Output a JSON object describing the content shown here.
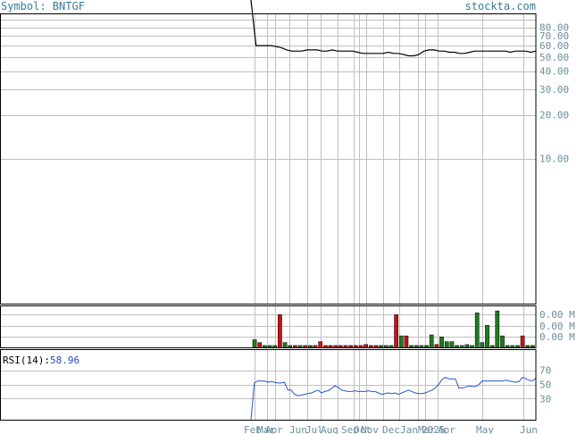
{
  "header": {
    "symbol_label": "Symbol: BNTGF",
    "brand": "stockta.com"
  },
  "colors": {
    "grid": "#c0c0c0",
    "price_line": "#000000",
    "rsi_line": "#2255cc",
    "rsi_label": "#000000",
    "rsi_value": "#1f4fb0",
    "axis_text": "#6b8e9a",
    "up_volume": "#1f7a1f",
    "down_volume": "#cc1111"
  },
  "chart_data": [
    {
      "type": "line",
      "panel": "price",
      "y_scale": "log",
      "y_tick_labels": [
        "80.00",
        "70.00",
        "60.00",
        "50.00",
        "40.00",
        "30.00",
        "20.00",
        "10.00"
      ],
      "y_ticks": [
        80,
        70,
        60,
        50,
        40,
        30,
        20,
        10
      ],
      "x_tick_labels": [
        "Feb",
        "Mar",
        "Apr",
        "Jun",
        "Jul",
        "Aug",
        "Sep",
        "Oct",
        "Nov",
        "Dec",
        "Jan",
        "Mar",
        "2025",
        "Apr",
        "May",
        "Jun"
      ],
      "series": [
        {
          "values": [
            1000,
            60,
            60,
            60,
            60,
            59,
            58,
            56,
            55,
            55,
            55,
            56,
            56,
            56,
            55,
            55,
            56,
            55,
            55,
            55,
            55,
            54,
            53,
            53,
            53,
            53,
            53,
            54,
            53,
            53,
            52,
            51,
            51,
            52,
            55,
            56,
            56,
            55,
            55,
            54,
            54,
            53,
            53,
            54,
            55,
            55,
            55,
            55,
            55,
            55,
            55,
            54,
            55,
            55,
            55,
            54,
            55
          ]
        }
      ]
    },
    {
      "type": "bar",
      "panel": "volume",
      "y_tick_labels": [
        "0.00 M",
        "0.00 M",
        "0.00 M"
      ],
      "bars": [
        {
          "v": 0.8,
          "c": "up"
        },
        {
          "v": 0.5,
          "c": "down"
        },
        {
          "v": 0.2,
          "c": "up"
        },
        {
          "v": 0.2,
          "c": "up"
        },
        {
          "v": 0.2,
          "c": "up"
        },
        {
          "v": 3.4,
          "c": "down"
        },
        {
          "v": 0.5,
          "c": "up"
        },
        {
          "v": 0.2,
          "c": "up"
        },
        {
          "v": 0.2,
          "c": "down"
        },
        {
          "v": 0.2,
          "c": "up"
        },
        {
          "v": 0.2,
          "c": "down"
        },
        {
          "v": 0.2,
          "c": "up"
        },
        {
          "v": 0.2,
          "c": "down"
        },
        {
          "v": 0.6,
          "c": "down"
        },
        {
          "v": 0.2,
          "c": "down"
        },
        {
          "v": 0.2,
          "c": "down"
        },
        {
          "v": 0.2,
          "c": "down"
        },
        {
          "v": 0.2,
          "c": "down"
        },
        {
          "v": 0.2,
          "c": "down"
        },
        {
          "v": 0.2,
          "c": "down"
        },
        {
          "v": 0.2,
          "c": "down"
        },
        {
          "v": 0.2,
          "c": "down"
        },
        {
          "v": 0.3,
          "c": "down"
        },
        {
          "v": 0.2,
          "c": "down"
        },
        {
          "v": 0.2,
          "c": "down"
        },
        {
          "v": 0.2,
          "c": "up"
        },
        {
          "v": 0.2,
          "c": "up"
        },
        {
          "v": 0.2,
          "c": "up"
        },
        {
          "v": 3.4,
          "c": "down"
        },
        {
          "v": 1.2,
          "c": "up"
        },
        {
          "v": 1.2,
          "c": "down"
        },
        {
          "v": 0.2,
          "c": "up"
        },
        {
          "v": 0.2,
          "c": "up"
        },
        {
          "v": 0.2,
          "c": "up"
        },
        {
          "v": 0.2,
          "c": "up"
        },
        {
          "v": 1.3,
          "c": "up"
        },
        {
          "v": 0.3,
          "c": "down"
        },
        {
          "v": 1.1,
          "c": "up"
        },
        {
          "v": 0.6,
          "c": "up"
        },
        {
          "v": 0.6,
          "c": "up"
        },
        {
          "v": 0.2,
          "c": "up"
        },
        {
          "v": 0.2,
          "c": "up"
        },
        {
          "v": 0.3,
          "c": "up"
        },
        {
          "v": 0.2,
          "c": "up"
        },
        {
          "v": 3.6,
          "c": "up"
        },
        {
          "v": 0.5,
          "c": "up"
        },
        {
          "v": 2.3,
          "c": "up"
        },
        {
          "v": 0.2,
          "c": "up"
        },
        {
          "v": 3.8,
          "c": "up"
        },
        {
          "v": 1.2,
          "c": "up"
        },
        {
          "v": 0.2,
          "c": "up"
        },
        {
          "v": 0.2,
          "c": "up"
        },
        {
          "v": 0.2,
          "c": "up"
        },
        {
          "v": 1.2,
          "c": "down"
        },
        {
          "v": 0.2,
          "c": "up"
        },
        {
          "v": 0.2,
          "c": "up"
        }
      ]
    },
    {
      "type": "line",
      "panel": "rsi",
      "label": "RSI(14):",
      "value_label": "58.96",
      "y_tick_labels": [
        "70",
        "50",
        "30"
      ],
      "y_ticks": [
        70,
        50,
        30
      ],
      "y_range": [
        0,
        100
      ],
      "series": [
        {
          "values": [
            0,
            52,
            55,
            55,
            55,
            53,
            54,
            53,
            52,
            52,
            53,
            42,
            42,
            36,
            34,
            35,
            36,
            37,
            38,
            40,
            42,
            38,
            40,
            41,
            44,
            48,
            46,
            42,
            41,
            40,
            40,
            41,
            40,
            40,
            40,
            41,
            40,
            40,
            38,
            36,
            37,
            38,
            37,
            38,
            36,
            38,
            40,
            42,
            40,
            38,
            37,
            37,
            38,
            40,
            42,
            45,
            50,
            57,
            60,
            58,
            58,
            58,
            45,
            45,
            46,
            48,
            47,
            47,
            50,
            55,
            55,
            55,
            55,
            55,
            55,
            55,
            56,
            55,
            54,
            53,
            54,
            60,
            58,
            56,
            55,
            59
          ]
        }
      ]
    }
  ]
}
